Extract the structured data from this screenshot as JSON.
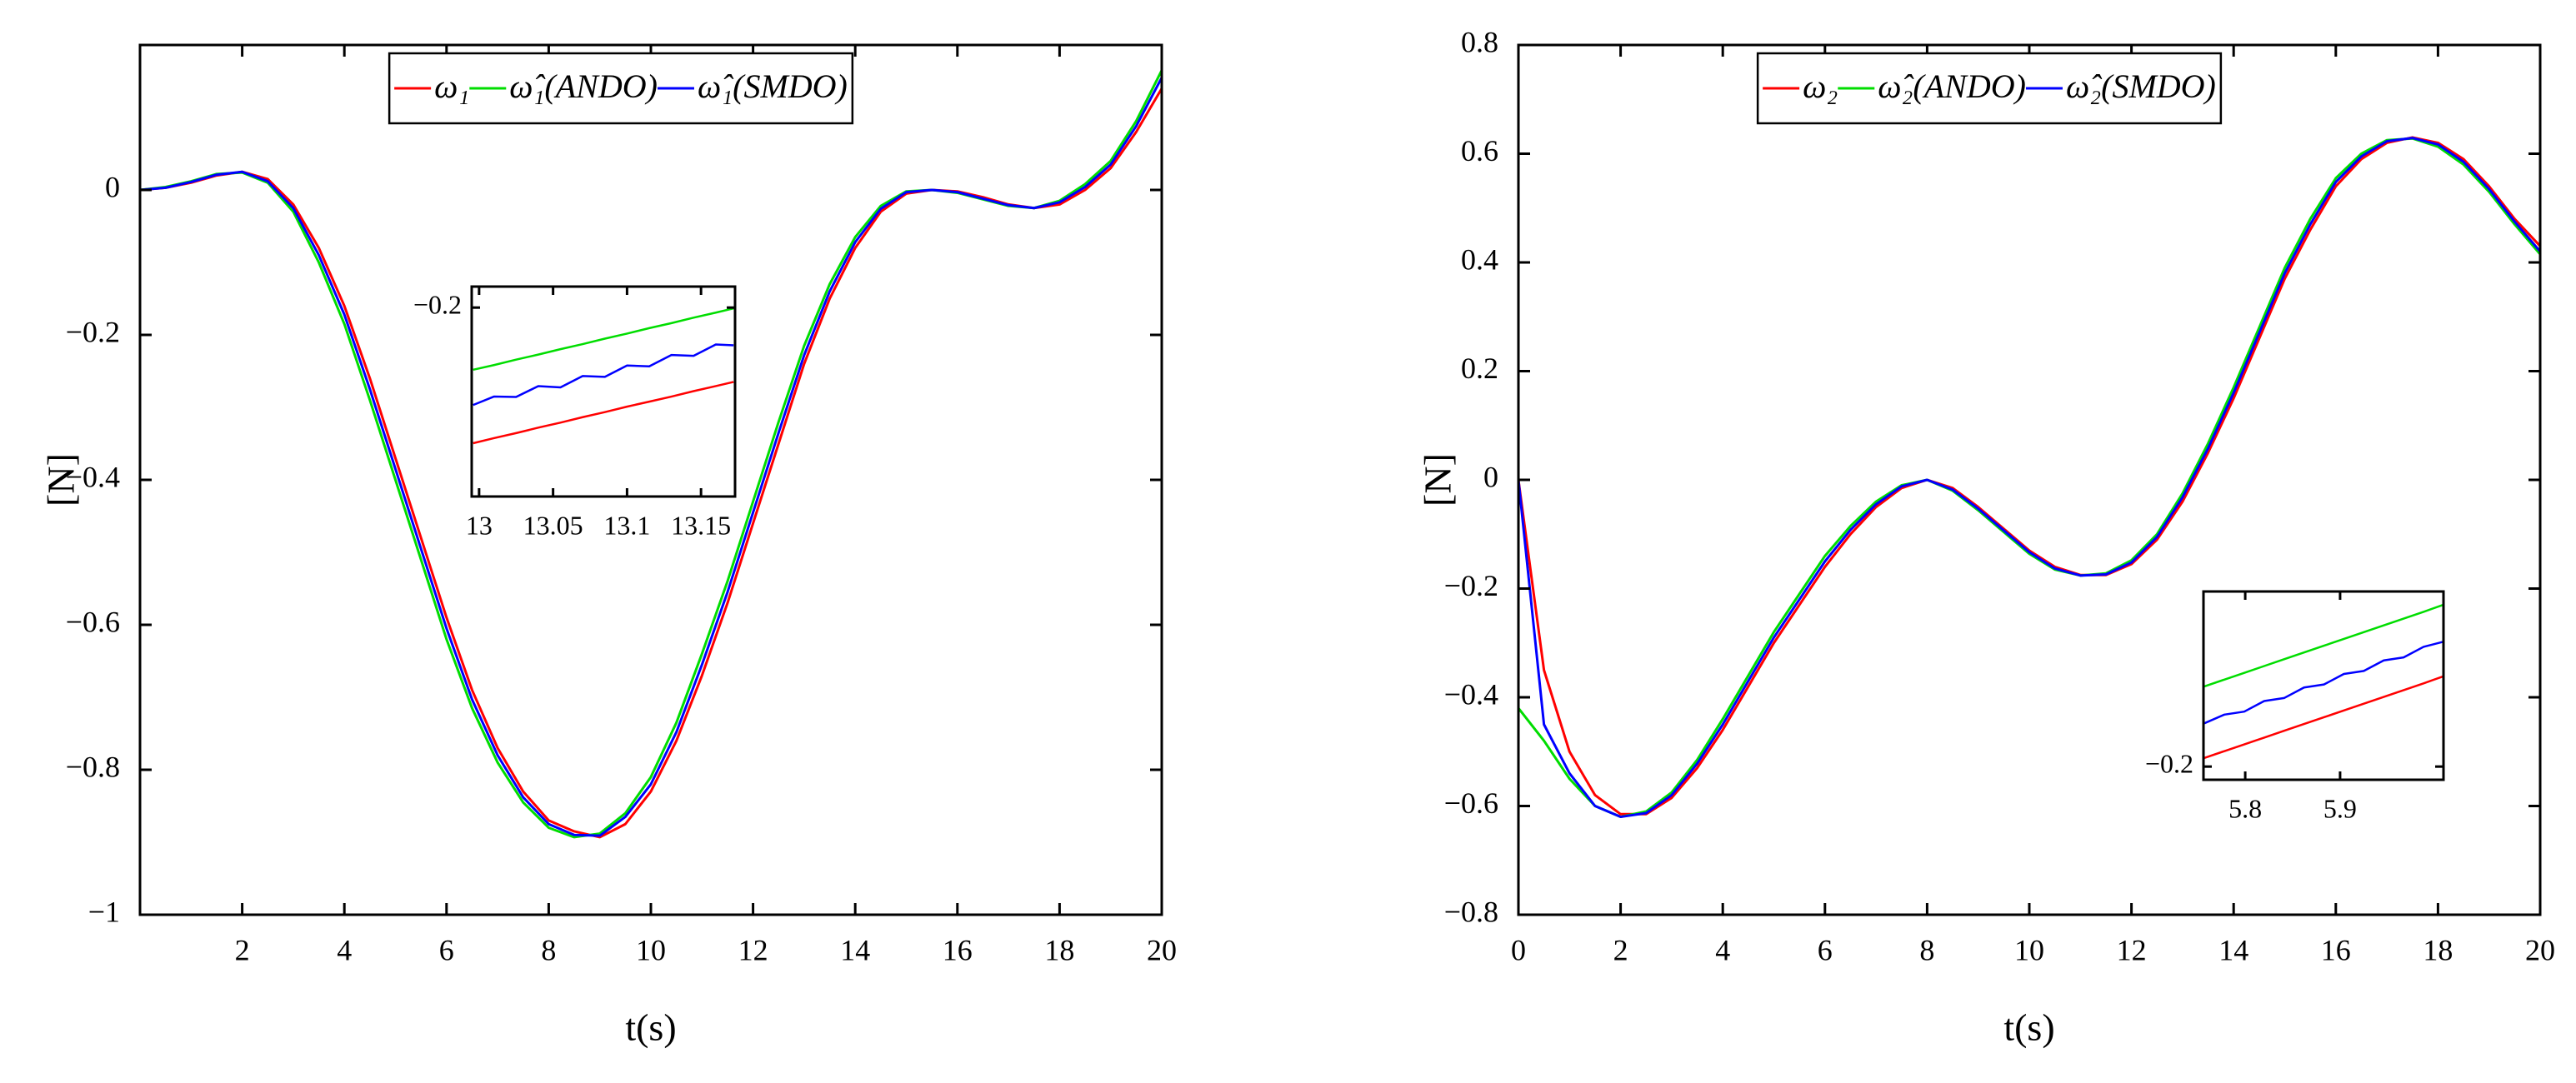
{
  "chart_data": [
    {
      "type": "line",
      "xlabel": "t(s)",
      "ylabel": "[N]",
      "x": [
        0,
        0.5,
        1,
        1.5,
        2,
        2.5,
        3,
        3.5,
        4,
        4.5,
        5,
        5.5,
        6,
        6.5,
        7,
        7.5,
        8,
        8.5,
        9,
        9.5,
        10,
        10.5,
        11,
        11.5,
        12,
        12.5,
        13,
        13.5,
        14,
        14.5,
        15,
        15.5,
        16,
        16.5,
        17,
        17.5,
        18,
        18.5,
        19,
        19.5,
        20
      ],
      "series": [
        {
          "name": "ω₁",
          "color": "#ff0000",
          "values": [
            0,
            0.003,
            0.01,
            0.02,
            0.025,
            0.015,
            -0.02,
            -0.08,
            -0.16,
            -0.26,
            -0.37,
            -0.48,
            -0.59,
            -0.69,
            -0.77,
            -0.83,
            -0.87,
            -0.885,
            -0.893,
            -0.875,
            -0.83,
            -0.76,
            -0.67,
            -0.57,
            -0.46,
            -0.35,
            -0.24,
            -0.15,
            -0.08,
            -0.03,
            -0.005,
            0,
            -0.002,
            -0.01,
            -0.02,
            -0.025,
            -0.02,
            0,
            0.03,
            0.08,
            0.14
          ]
        },
        {
          "name": "ω̂₁(ANDO)",
          "color": "#00dd00",
          "values": [
            0,
            0.004,
            0.012,
            0.022,
            0.024,
            0.01,
            -0.03,
            -0.1,
            -0.185,
            -0.29,
            -0.4,
            -0.51,
            -0.62,
            -0.715,
            -0.79,
            -0.845,
            -0.88,
            -0.893,
            -0.888,
            -0.86,
            -0.81,
            -0.735,
            -0.64,
            -0.54,
            -0.43,
            -0.32,
            -0.215,
            -0.13,
            -0.065,
            -0.022,
            -0.002,
            0,
            -0.004,
            -0.013,
            -0.022,
            -0.025,
            -0.015,
            0.008,
            0.04,
            0.095,
            0.165
          ]
        },
        {
          "name": "ω̂₁(SMDO)",
          "color": "#0000ff",
          "values": [
            0,
            0.003,
            0.011,
            0.021,
            0.025,
            0.012,
            -0.025,
            -0.09,
            -0.172,
            -0.275,
            -0.385,
            -0.495,
            -0.605,
            -0.703,
            -0.78,
            -0.838,
            -0.875,
            -0.89,
            -0.891,
            -0.865,
            -0.82,
            -0.748,
            -0.655,
            -0.555,
            -0.445,
            -0.335,
            -0.228,
            -0.14,
            -0.072,
            -0.026,
            -0.003,
            0,
            -0.003,
            -0.012,
            -0.021,
            -0.025,
            -0.017,
            0.004,
            0.035,
            0.088,
            0.155
          ]
        }
      ],
      "xlim": [
        0,
        20
      ],
      "xticks": [
        2,
        4,
        6,
        8,
        10,
        12,
        14,
        16,
        18,
        20
      ],
      "ylim": [
        -1,
        0.2
      ],
      "yticks": [
        {
          "value": -1,
          "label": "−1"
        },
        {
          "value": -0.8,
          "label": "−0.8"
        },
        {
          "value": -0.6,
          "label": "−0.6"
        },
        {
          "value": -0.4,
          "label": "−0.4"
        },
        {
          "value": -0.2,
          "label": "−0.2"
        },
        0
      ],
      "inset": {
        "x": [
          12.996,
          13.01,
          13.025,
          13.04,
          13.055,
          13.07,
          13.085,
          13.1,
          13.115,
          13.13,
          13.145,
          13.16,
          13.172
        ],
        "series": [
          {
            "color": "#ff0000",
            "values": [
              -0.2323,
              -0.2311,
              -0.2299,
              -0.2286,
              -0.2274,
              -0.2261,
              -0.2249,
              -0.2236,
              -0.2224,
              -0.2212,
              -0.2199,
              -0.2187,
              -0.2177
            ]
          },
          {
            "color": "#00dd00",
            "values": [
              -0.2148,
              -0.2137,
              -0.2124,
              -0.2112,
              -0.2099,
              -0.2087,
              -0.2074,
              -0.2062,
              -0.2049,
              -0.2037,
              -0.2024,
              -0.2012,
              -0.2002
            ]
          },
          {
            "color": "#0000ff",
            "values": [
              -0.2232,
              -0.2212,
              -0.2213,
              -0.2187,
              -0.219,
              -0.2163,
              -0.2165,
              -0.2138,
              -0.214,
              -0.2113,
              -0.2115,
              -0.2088,
              -0.209
            ]
          }
        ],
        "xlim": [
          12.995,
          13.173
        ],
        "xticks": [
          13,
          13.05,
          13.1,
          13.15
        ],
        "ylim": [
          -0.245,
          -0.195
        ],
        "yticks": [
          {
            "value": -0.2,
            "label": "−0.2"
          }
        ]
      }
    },
    {
      "type": "line",
      "xlabel": "t(s)",
      "ylabel": "[N]",
      "x": [
        0,
        0.5,
        1,
        1.5,
        2,
        2.5,
        3,
        3.5,
        4,
        4.5,
        5,
        5.5,
        6,
        6.5,
        7,
        7.5,
        8,
        8.5,
        9,
        9.5,
        10,
        10.5,
        11,
        11.5,
        12,
        12.5,
        13,
        13.5,
        14,
        14.5,
        15,
        15.5,
        16,
        16.5,
        17,
        17.5,
        18,
        18.5,
        19,
        19.5,
        20
      ],
      "series": [
        {
          "name": "ω₂",
          "color": "#ff0000",
          "values": [
            0,
            -0.35,
            -0.5,
            -0.58,
            -0.615,
            -0.615,
            -0.585,
            -0.53,
            -0.46,
            -0.38,
            -0.3,
            -0.23,
            -0.16,
            -0.1,
            -0.05,
            -0.015,
            0,
            -0.015,
            -0.05,
            -0.09,
            -0.13,
            -0.16,
            -0.175,
            -0.175,
            -0.155,
            -0.11,
            -0.04,
            0.05,
            0.15,
            0.26,
            0.37,
            0.46,
            0.54,
            0.59,
            0.62,
            0.63,
            0.62,
            0.59,
            0.54,
            0.48,
            0.43
          ]
        },
        {
          "name": "ω̂₂(ANDO)",
          "color": "#00dd00",
          "values": [
            -0.42,
            -0.48,
            -0.55,
            -0.6,
            -0.62,
            -0.61,
            -0.575,
            -0.515,
            -0.44,
            -0.36,
            -0.28,
            -0.21,
            -0.14,
            -0.085,
            -0.04,
            -0.01,
            0,
            -0.02,
            -0.056,
            -0.096,
            -0.136,
            -0.165,
            -0.176,
            -0.172,
            -0.148,
            -0.1,
            -0.025,
            0.067,
            0.17,
            0.28,
            0.39,
            0.48,
            0.555,
            0.6,
            0.625,
            0.628,
            0.613,
            0.58,
            0.53,
            0.47,
            0.415
          ]
        },
        {
          "name": "ω̂₂(SMDO)",
          "color": "#0000ff",
          "values": [
            0,
            -0.45,
            -0.54,
            -0.6,
            -0.62,
            -0.613,
            -0.58,
            -0.522,
            -0.45,
            -0.37,
            -0.29,
            -0.22,
            -0.15,
            -0.092,
            -0.045,
            -0.012,
            0,
            -0.018,
            -0.053,
            -0.093,
            -0.133,
            -0.163,
            -0.176,
            -0.174,
            -0.152,
            -0.105,
            -0.032,
            0.058,
            0.16,
            0.27,
            0.38,
            0.47,
            0.548,
            0.595,
            0.623,
            0.629,
            0.617,
            0.585,
            0.535,
            0.475,
            0.42
          ]
        }
      ],
      "xlim": [
        0,
        20
      ],
      "xticks": [
        0,
        2,
        4,
        6,
        8,
        10,
        12,
        14,
        16,
        18,
        20
      ],
      "ylim": [
        -0.8,
        0.8
      ],
      "yticks": [
        {
          "value": -0.8,
          "label": "−0.8"
        },
        {
          "value": -0.6,
          "label": "−0.6"
        },
        {
          "value": -0.4,
          "label": "−0.4"
        },
        {
          "value": -0.2,
          "label": "−0.2"
        },
        0,
        0.2,
        0.4,
        0.6,
        0.8
      ],
      "inset": {
        "x": [
          5.757,
          5.778,
          5.799,
          5.82,
          5.841,
          5.862,
          5.883,
          5.904,
          5.925,
          5.946,
          5.967,
          5.988,
          6.008
        ],
        "series": [
          {
            "color": "#ff0000",
            "values": [
              -0.1977,
              -0.1959,
              -0.1941,
              -0.1923,
              -0.1905,
              -0.1887,
              -0.1869,
              -0.1851,
              -0.1833,
              -0.1815,
              -0.1797,
              -0.1779,
              -0.1761
            ]
          },
          {
            "color": "#00dd00",
            "values": [
              -0.1787,
              -0.1769,
              -0.1751,
              -0.1733,
              -0.1715,
              -0.1697,
              -0.1679,
              -0.1661,
              -0.1643,
              -0.1625,
              -0.1607,
              -0.1589,
              -0.1571
            ]
          },
          {
            "color": "#0000ff",
            "values": [
              -0.1885,
              -0.1862,
              -0.1854,
              -0.1826,
              -0.1818,
              -0.179,
              -0.1782,
              -0.1754,
              -0.1746,
              -0.1718,
              -0.171,
              -0.1682,
              -0.1669
            ]
          }
        ],
        "xlim": [
          5.756,
          6.009
        ],
        "xticks": [
          5.8,
          5.9
        ],
        "ylim": [
          -0.2035,
          -0.1535
        ],
        "yticks": [
          {
            "value": -0.2,
            "label": "−0.2"
          }
        ]
      }
    }
  ]
}
